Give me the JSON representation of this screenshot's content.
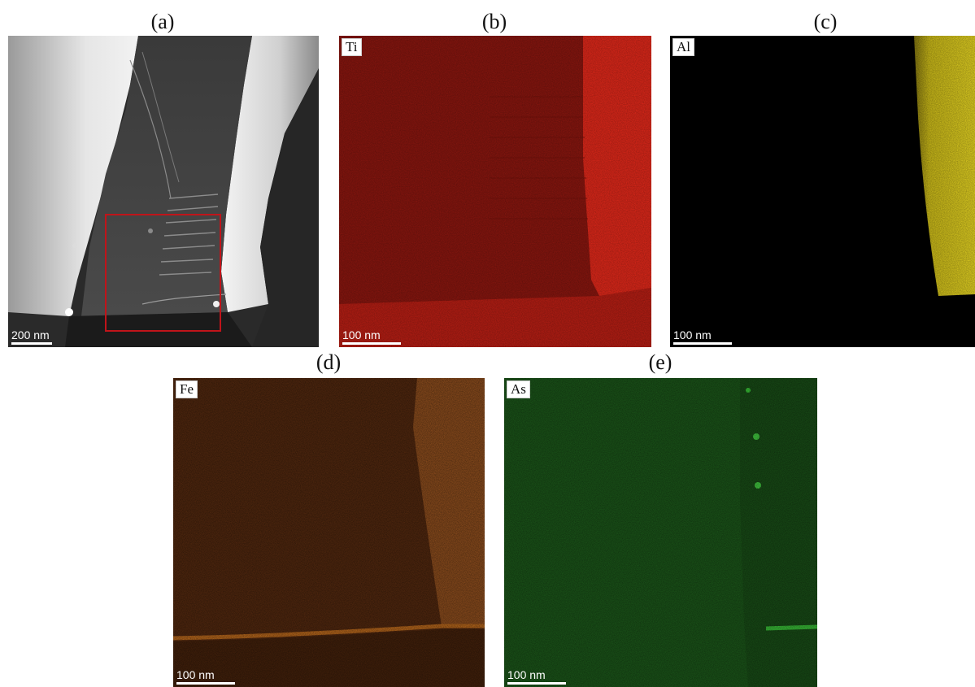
{
  "panels": {
    "a": {
      "label": "(a)",
      "scale_text": "200 nm"
    },
    "b": {
      "label": "(b)",
      "element": "Ti",
      "scale_text": "100 nm",
      "color": "#d51a0a"
    },
    "c": {
      "label": "(c)",
      "element": "Al",
      "scale_text": "100 nm",
      "color": "#e6d21a"
    },
    "d": {
      "label": "(d)",
      "element": "Fe",
      "scale_text": "100 nm",
      "color": "#b8641e"
    },
    "e": {
      "label": "(e)",
      "element": "As",
      "scale_text": "100 nm",
      "color": "#2ea82a"
    }
  },
  "roi_color": "#c0141a"
}
